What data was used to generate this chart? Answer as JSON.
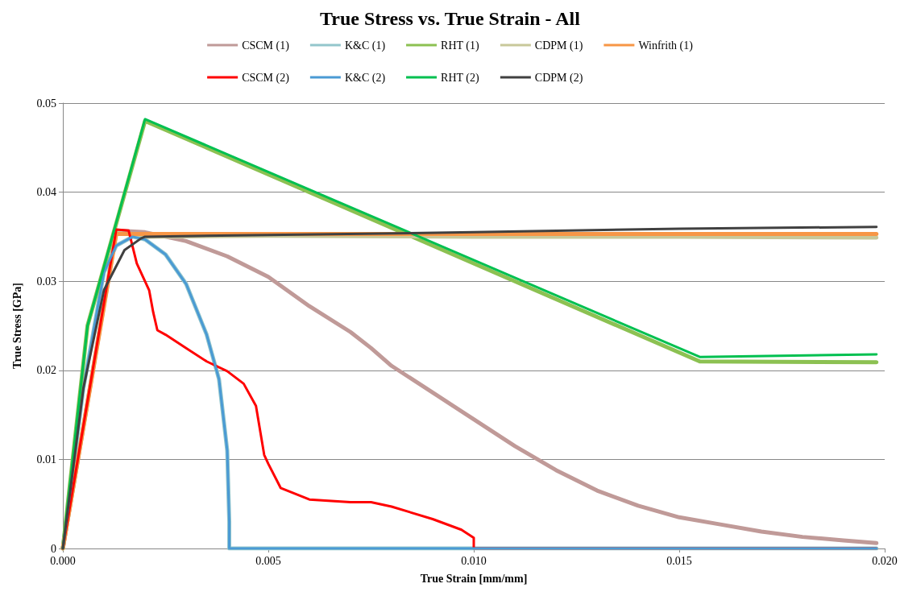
{
  "chart_data": {
    "type": "line",
    "title": "True Stress vs. True Strain - All",
    "xlabel": "True Strain [mm/mm]",
    "ylabel": "True Stress [GPa]",
    "xlim": [
      0,
      0.02
    ],
    "xticks": [
      {
        "value": 0,
        "label": "0.000"
      },
      {
        "value": 0.005,
        "label": "0.005"
      },
      {
        "value": 0.01,
        "label": "0.010"
      },
      {
        "value": 0.015,
        "label": "0.015"
      },
      {
        "value": 0.02,
        "label": "0.020"
      }
    ],
    "ylim": [
      0,
      0.05
    ],
    "yticks": [
      0,
      0.01,
      0.02,
      0.03,
      0.04,
      0.05
    ],
    "grid": "y",
    "legend": "top",
    "marker": "none",
    "line_style": "solid",
    "series": [
      {
        "name": "CSCM (1)",
        "color": "#c09a98",
        "x": [
          0,
          0.0013,
          0.002,
          0.003,
          0.004,
          0.005,
          0.006,
          0.007,
          0.0075,
          0.008,
          0.009,
          0.01,
          0.011,
          0.012,
          0.013,
          0.014,
          0.015,
          0.016,
          0.017,
          0.018,
          0.019,
          0.0198
        ],
        "values": [
          0,
          0.0357,
          0.0355,
          0.0345,
          0.0328,
          0.0305,
          0.0272,
          0.0243,
          0.0225,
          0.0205,
          0.0175,
          0.0145,
          0.0115,
          0.0088,
          0.0065,
          0.0048,
          0.0035,
          0.0027,
          0.0019,
          0.0013,
          0.0009,
          0.0006
        ]
      },
      {
        "name": "K&C (1)",
        "color": "#93c6cc",
        "x": [
          0,
          0.0005,
          0.001,
          0.0013,
          0.0017,
          0.002,
          0.0025,
          0.003,
          0.0035,
          0.0038,
          0.004,
          0.00405,
          0.00405,
          0.0198
        ],
        "values": [
          0,
          0.018,
          0.031,
          0.034,
          0.035,
          0.0347,
          0.033,
          0.0297,
          0.024,
          0.019,
          0.011,
          0.003,
          0,
          0
        ]
      },
      {
        "name": "RHT (1)",
        "color": "#8cc152",
        "x": [
          0,
          0.0006,
          0.002,
          0.0155,
          0.0198
        ],
        "values": [
          0,
          0.025,
          0.048,
          0.021,
          0.0209
        ]
      },
      {
        "name": "CDPM (1)",
        "color": "#c8c89a",
        "x": [
          0,
          0.0013,
          0.002,
          0.005,
          0.01,
          0.015,
          0.0198
        ],
        "values": [
          0,
          0.0355,
          0.035,
          0.0351,
          0.035,
          0.035,
          0.0349
        ]
      },
      {
        "name": "Winfrith (1)",
        "color": "#f79646",
        "x": [
          0,
          0.0013,
          0.0198
        ],
        "values": [
          0,
          0.0353,
          0.0353
        ]
      },
      {
        "name": "CSCM (2)",
        "color": "#ff0000",
        "x": [
          0,
          0.0013,
          0.0016,
          0.0018,
          0.0021,
          0.0022,
          0.0023,
          0.0025,
          0.003,
          0.0035,
          0.004,
          0.0044,
          0.0047,
          0.0049,
          0.005,
          0.0053,
          0.006,
          0.007,
          0.0075,
          0.008,
          0.009,
          0.0097,
          0.01,
          0.01,
          0.0198
        ],
        "values": [
          0,
          0.0358,
          0.0357,
          0.032,
          0.029,
          0.0265,
          0.0245,
          0.024,
          0.0225,
          0.021,
          0.0199,
          0.0185,
          0.016,
          0.0105,
          0.0095,
          0.0068,
          0.0055,
          0.0052,
          0.0052,
          0.0047,
          0.0033,
          0.0021,
          0.0012,
          0,
          0
        ]
      },
      {
        "name": "K&C (2)",
        "color": "#4a9ad4",
        "x": [
          0,
          0.0005,
          0.001,
          0.0013,
          0.0017,
          0.002,
          0.0025,
          0.003,
          0.0035,
          0.0038,
          0.004,
          0.00405,
          0.00405,
          0.0198
        ],
        "values": [
          0,
          0.018,
          0.031,
          0.034,
          0.035,
          0.0347,
          0.033,
          0.0297,
          0.024,
          0.019,
          0.011,
          0.003,
          0,
          0
        ]
      },
      {
        "name": "RHT (2)",
        "color": "#00c050",
        "x": [
          0,
          0.0006,
          0.002,
          0.0155,
          0.0198
        ],
        "values": [
          0,
          0.025,
          0.0482,
          0.0215,
          0.0218
        ]
      },
      {
        "name": "CDPM (2)",
        "color": "#404040",
        "x": [
          0,
          0.0005,
          0.001,
          0.0015,
          0.0019,
          0.002,
          0.005,
          0.01,
          0.015,
          0.0198
        ],
        "values": [
          0,
          0.018,
          0.029,
          0.0335,
          0.0348,
          0.035,
          0.0352,
          0.0355,
          0.0359,
          0.0361
        ]
      }
    ]
  }
}
